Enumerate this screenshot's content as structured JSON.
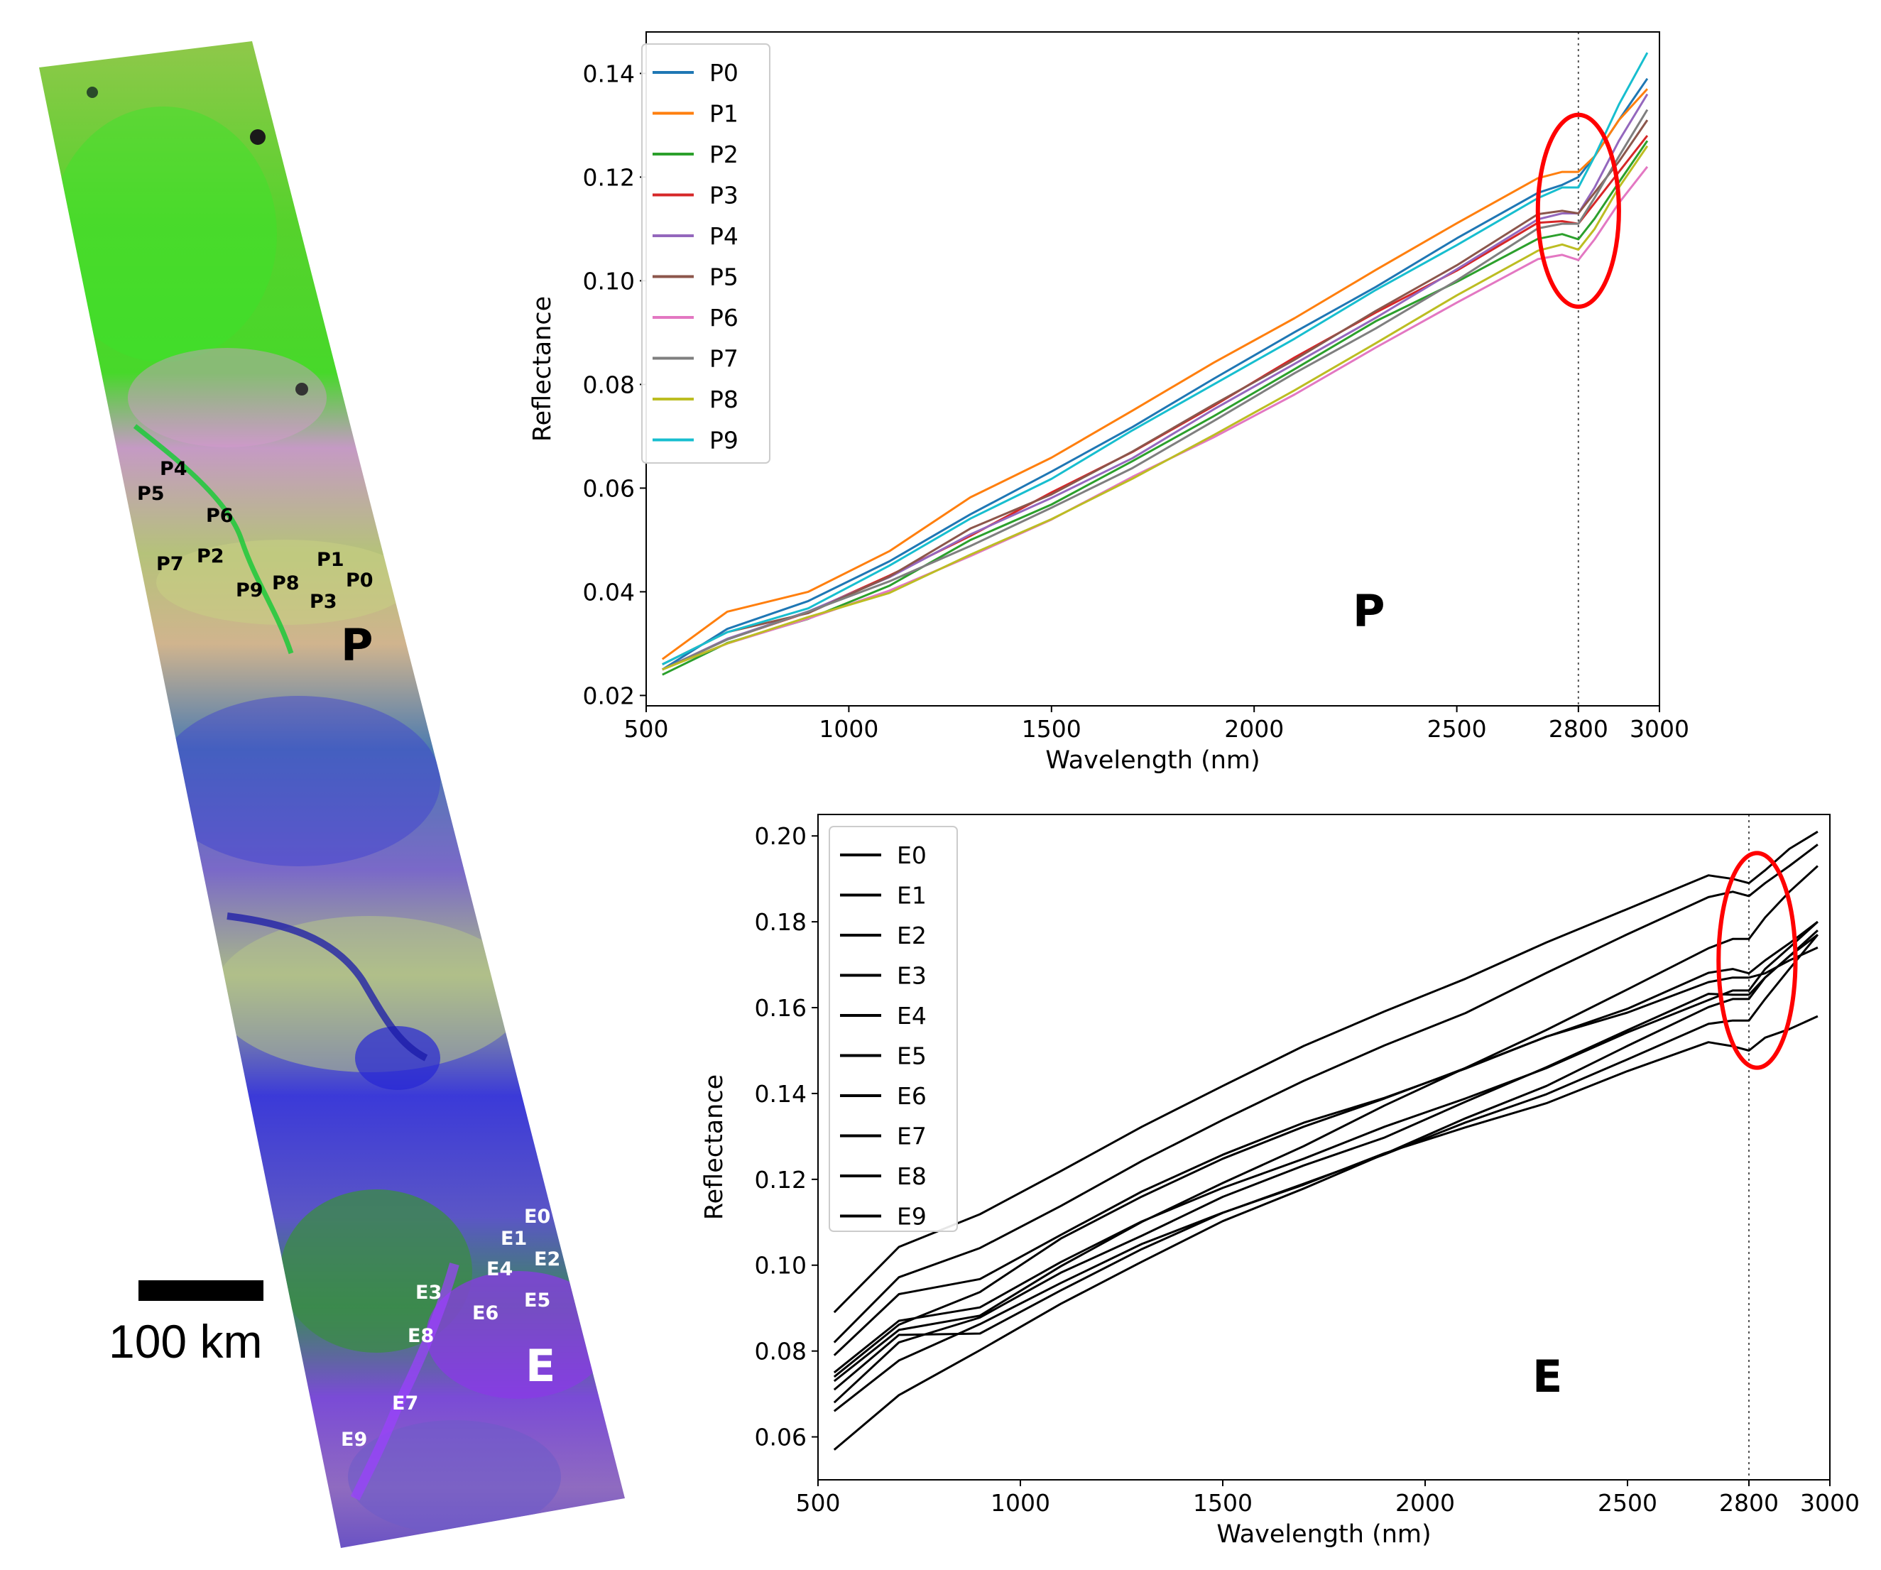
{
  "map": {
    "site_labels_p": [
      "P4",
      "P5",
      "P6",
      "P7",
      "P2",
      "P1",
      "P0",
      "P9",
      "P8",
      "P3"
    ],
    "site_labels_e": [
      "E0",
      "E1",
      "E2",
      "E4",
      "E3",
      "E6",
      "E5",
      "E8",
      "E7",
      "E9"
    ],
    "region_p_label": "P",
    "region_e_label": "E",
    "scale_bar_label": "100 km"
  },
  "colors": {
    "P0": "#1f77b4",
    "P1": "#ff7f0e",
    "P2": "#2ca02c",
    "P3": "#d62728",
    "P4": "#9467bd",
    "P5": "#8c564b",
    "P6": "#e377c2",
    "P7": "#7f7f7f",
    "P8": "#bcbd22",
    "P9": "#17becf",
    "highlight": "#ff0000"
  },
  "chart_data": [
    {
      "type": "line",
      "id": "chart-p",
      "region_label": "P",
      "xlabel": "Wavelength (nm)",
      "ylabel": "Reflectance",
      "xlim": [
        500,
        3000
      ],
      "ylim": [
        0.018,
        0.148
      ],
      "xticks": [
        500,
        1000,
        1500,
        2000,
        2500,
        2800,
        3000
      ],
      "yticks": [
        0.02,
        0.04,
        0.06,
        0.08,
        0.1,
        0.12,
        0.14
      ],
      "ytick_labels": [
        "0.02",
        "0.04",
        "0.06",
        "0.08",
        "0.10",
        "0.12",
        "0.14"
      ],
      "vline_x": 2800,
      "highlight_ellipse": {
        "center": [
          2800,
          0.1135
        ],
        "radius": [
          100,
          0.0185
        ]
      },
      "x": [
        540,
        700,
        900,
        1100,
        1300,
        1500,
        1700,
        1900,
        2100,
        2300,
        2500,
        2700,
        2760,
        2800,
        2840,
        2900,
        2970
      ],
      "series": [
        {
          "name": "P0",
          "values": [
            0.025,
            0.033,
            0.038,
            0.046,
            0.055,
            0.063,
            0.072,
            0.081,
            0.09,
            0.099,
            0.108,
            0.117,
            0.1185,
            0.12,
            0.124,
            0.131,
            0.139
          ]
        },
        {
          "name": "P1",
          "values": [
            0.027,
            0.036,
            0.04,
            0.048,
            0.058,
            0.066,
            0.075,
            0.084,
            0.093,
            0.102,
            0.111,
            0.12,
            0.121,
            0.121,
            0.124,
            0.131,
            0.137
          ]
        },
        {
          "name": "P2",
          "values": [
            0.024,
            0.03,
            0.035,
            0.041,
            0.05,
            0.057,
            0.065,
            0.074,
            0.083,
            0.092,
            0.1,
            0.108,
            0.109,
            0.108,
            0.112,
            0.119,
            0.127
          ]
        },
        {
          "name": "P3",
          "values": [
            0.025,
            0.031,
            0.036,
            0.043,
            0.051,
            0.059,
            0.067,
            0.076,
            0.085,
            0.094,
            0.102,
            0.111,
            0.1115,
            0.111,
            0.115,
            0.121,
            0.128
          ]
        },
        {
          "name": "P4",
          "values": [
            0.025,
            0.031,
            0.036,
            0.043,
            0.051,
            0.058,
            0.066,
            0.075,
            0.084,
            0.093,
            0.102,
            0.112,
            0.113,
            0.113,
            0.118,
            0.127,
            0.136
          ]
        },
        {
          "name": "P5",
          "values": [
            0.026,
            0.032,
            0.036,
            0.043,
            0.052,
            0.059,
            0.067,
            0.076,
            0.085,
            0.094,
            0.103,
            0.113,
            0.1135,
            0.113,
            0.117,
            0.123,
            0.131
          ]
        },
        {
          "name": "P6",
          "values": [
            0.025,
            0.03,
            0.035,
            0.04,
            0.047,
            0.054,
            0.062,
            0.07,
            0.078,
            0.087,
            0.096,
            0.104,
            0.105,
            0.104,
            0.108,
            0.115,
            0.122
          ]
        },
        {
          "name": "P7",
          "values": [
            0.025,
            0.031,
            0.036,
            0.042,
            0.049,
            0.056,
            0.064,
            0.073,
            0.082,
            0.091,
            0.1,
            0.11,
            0.111,
            0.111,
            0.116,
            0.124,
            0.133
          ]
        },
        {
          "name": "P8",
          "values": [
            0.025,
            0.03,
            0.035,
            0.04,
            0.047,
            0.054,
            0.062,
            0.07,
            0.079,
            0.088,
            0.097,
            0.106,
            0.107,
            0.106,
            0.11,
            0.118,
            0.126
          ]
        },
        {
          "name": "P9",
          "values": [
            0.026,
            0.032,
            0.037,
            0.045,
            0.054,
            0.062,
            0.071,
            0.08,
            0.089,
            0.098,
            0.107,
            0.116,
            0.118,
            0.118,
            0.124,
            0.134,
            0.144
          ]
        }
      ]
    },
    {
      "type": "line",
      "id": "chart-e",
      "region_label": "E",
      "xlabel": "Wavelength (nm)",
      "ylabel": "Reflectance",
      "xlim": [
        500,
        3000
      ],
      "ylim": [
        0.05,
        0.205
      ],
      "xticks": [
        500,
        1000,
        1500,
        2000,
        2500,
        2800,
        3000
      ],
      "yticks": [
        0.06,
        0.08,
        0.1,
        0.12,
        0.14,
        0.16,
        0.18,
        0.2
      ],
      "ytick_labels": [
        "0.06",
        "0.08",
        "0.10",
        "0.12",
        "0.14",
        "0.16",
        "0.18",
        "0.20"
      ],
      "vline_x": 2800,
      "highlight_ellipse": {
        "center": [
          2820,
          0.171
        ],
        "radius": [
          95,
          0.025
        ]
      },
      "x": [
        540,
        700,
        900,
        1100,
        1300,
        1500,
        1700,
        1900,
        2100,
        2300,
        2500,
        2700,
        2760,
        2800,
        2840,
        2900,
        2970
      ],
      "series": [
        {
          "name": "E0",
          "values": [
            0.066,
            0.078,
            0.086,
            0.096,
            0.105,
            0.112,
            0.119,
            0.126,
            0.132,
            0.138,
            0.145,
            0.152,
            0.151,
            0.15,
            0.153,
            0.155,
            0.158
          ]
        },
        {
          "name": "E1",
          "values": [
            0.082,
            0.097,
            0.104,
            0.114,
            0.124,
            0.134,
            0.143,
            0.151,
            0.159,
            0.168,
            0.177,
            0.186,
            0.187,
            0.186,
            0.189,
            0.193,
            0.198
          ]
        },
        {
          "name": "E2",
          "values": [
            0.074,
            0.086,
            0.094,
            0.106,
            0.116,
            0.125,
            0.132,
            0.139,
            0.146,
            0.153,
            0.16,
            0.168,
            0.169,
            0.168,
            0.171,
            0.175,
            0.18
          ]
        },
        {
          "name": "E3",
          "values": [
            0.071,
            0.084,
            0.084,
            0.094,
            0.104,
            0.112,
            0.119,
            0.126,
            0.133,
            0.14,
            0.148,
            0.156,
            0.157,
            0.157,
            0.162,
            0.169,
            0.177
          ]
        },
        {
          "name": "E4",
          "values": [
            0.073,
            0.085,
            0.088,
            0.1,
            0.11,
            0.119,
            0.128,
            0.137,
            0.146,
            0.155,
            0.164,
            0.174,
            0.176,
            0.176,
            0.181,
            0.187,
            0.193
          ]
        },
        {
          "name": "E5",
          "values": [
            0.089,
            0.104,
            0.112,
            0.122,
            0.132,
            0.142,
            0.151,
            0.159,
            0.167,
            0.175,
            0.183,
            0.191,
            0.19,
            0.189,
            0.192,
            0.197,
            0.201
          ]
        },
        {
          "name": "E6",
          "values": [
            0.068,
            0.082,
            0.088,
            0.098,
            0.107,
            0.116,
            0.123,
            0.13,
            0.138,
            0.146,
            0.155,
            0.163,
            0.163,
            0.163,
            0.167,
            0.172,
            0.177
          ]
        },
        {
          "name": "E7",
          "values": [
            0.057,
            0.07,
            0.08,
            0.091,
            0.101,
            0.11,
            0.118,
            0.126,
            0.134,
            0.142,
            0.151,
            0.16,
            0.162,
            0.162,
            0.167,
            0.172,
            0.178
          ]
        },
        {
          "name": "E8",
          "values": [
            0.075,
            0.087,
            0.09,
            0.101,
            0.11,
            0.118,
            0.125,
            0.132,
            0.139,
            0.146,
            0.154,
            0.162,
            0.164,
            0.164,
            0.169,
            0.174,
            0.18
          ]
        },
        {
          "name": "E9",
          "values": [
            0.079,
            0.093,
            0.097,
            0.107,
            0.117,
            0.126,
            0.133,
            0.139,
            0.146,
            0.153,
            0.159,
            0.166,
            0.167,
            0.167,
            0.168,
            0.171,
            0.174
          ]
        }
      ]
    }
  ]
}
